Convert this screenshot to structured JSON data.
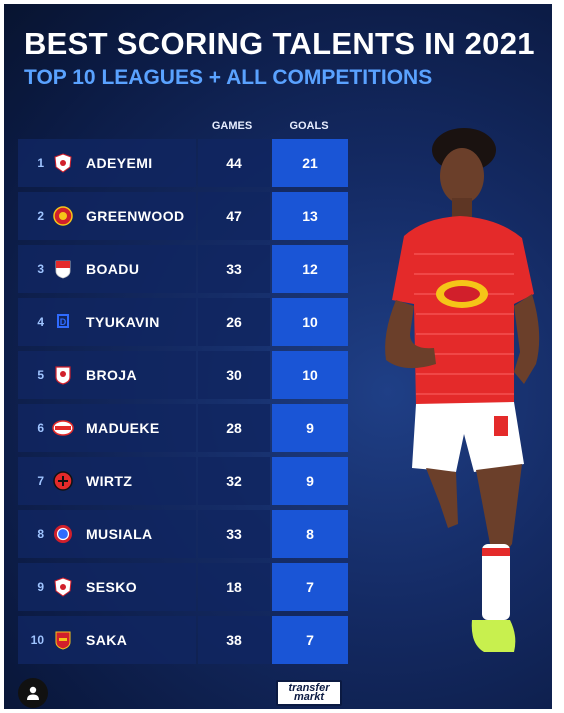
{
  "header": {
    "title": "BEST SCORING TALENTS IN 2021",
    "subtitle": "TOP 10 LEAGUES + ALL COMPETITIONS"
  },
  "columns": {
    "games": "GAMES",
    "goals": "GOALS"
  },
  "rows": [
    {
      "rank": "1",
      "name": "ADEYEMI",
      "games": "44",
      "goals": "21",
      "crest": "red-bull-salzburg-crest"
    },
    {
      "rank": "2",
      "name": "GREENWOOD",
      "games": "47",
      "goals": "13",
      "crest": "manchester-united-crest"
    },
    {
      "rank": "3",
      "name": "BOADU",
      "games": "33",
      "goals": "12",
      "crest": "monaco-crest"
    },
    {
      "rank": "4",
      "name": "TYUKAVIN",
      "games": "26",
      "goals": "10",
      "crest": "dynamo-moscow-crest"
    },
    {
      "rank": "5",
      "name": "BROJA",
      "games": "30",
      "goals": "10",
      "crest": "southampton-crest"
    },
    {
      "rank": "6",
      "name": "MADUEKE",
      "games": "28",
      "goals": "9",
      "crest": "psv-crest"
    },
    {
      "rank": "7",
      "name": "WIRTZ",
      "games": "32",
      "goals": "9",
      "crest": "leverkusen-crest"
    },
    {
      "rank": "8",
      "name": "MUSIALA",
      "games": "33",
      "goals": "8",
      "crest": "bayern-crest"
    },
    {
      "rank": "9",
      "name": "SESKO",
      "games": "18",
      "goals": "7",
      "crest": "red-bull-salzburg-crest"
    },
    {
      "rank": "10",
      "name": "SAKA",
      "games": "38",
      "goals": "7",
      "crest": "arsenal-crest"
    }
  ],
  "logo": {
    "line1": "transfer",
    "line2": "markt"
  },
  "colors": {
    "background": "#0b1a42",
    "goals_cell": "#1a55d6",
    "subtitle": "#5aa2ff",
    "jersey": "#e42a2a"
  }
}
